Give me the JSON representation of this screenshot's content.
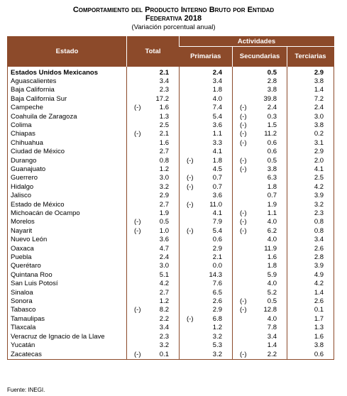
{
  "header": {
    "title_lines": [
      "Comportamiento del Producto Interno Bruto por Entidad",
      "Federativa 2018"
    ],
    "subtitle": "(Variación porcentual anual)"
  },
  "table": {
    "columns": {
      "estado": "Estado",
      "total": "Total",
      "actividades": "Actividades",
      "primarias": "Primarias",
      "secundarias": "Secundarias",
      "terciarias": "Terciarias"
    },
    "rows": [
      {
        "estado": "Estados Unidos Mexicanos",
        "cells": [
          "2.1",
          "2.4",
          "0.5",
          "2.9"
        ]
      },
      {
        "estado": "Aguascalientes",
        "cells": [
          "3.4",
          "3.4",
          "2.8",
          "3.8"
        ]
      },
      {
        "estado": "Baja California",
        "cells": [
          "2.3",
          "1.8",
          "3.8",
          "1.4"
        ]
      },
      {
        "estado": "Baja California Sur",
        "cells": [
          "17.2",
          "4.0",
          "39.8",
          "7.2"
        ]
      },
      {
        "estado": "Campeche",
        "cells": [
          {
            "sign": "(-)",
            "value": "1.6"
          },
          "7.4",
          {
            "sign": "(-)",
            "value": "2.4"
          },
          "2.4"
        ]
      },
      {
        "estado": "Coahuila de Zaragoza",
        "cells": [
          "1.3",
          "5.4",
          {
            "sign": "(-)",
            "value": "0.3"
          },
          "3.0"
        ]
      },
      {
        "estado": "Colima",
        "cells": [
          "2.5",
          "3.6",
          {
            "sign": "(-)",
            "value": "1.5"
          },
          "3.8"
        ]
      },
      {
        "estado": "Chiapas",
        "cells": [
          {
            "sign": "(-)",
            "value": "2.1"
          },
          "1.1",
          {
            "sign": "(-)",
            "value": "11.2"
          },
          "0.2"
        ]
      },
      {
        "estado": "Chihuahua",
        "cells": [
          "1.6",
          "3.3",
          {
            "sign": "(-)",
            "value": "0.6"
          },
          "3.1"
        ]
      },
      {
        "estado": "Ciudad de México",
        "cells": [
          "2.7",
          "4.1",
          "0.6",
          "2.9"
        ]
      },
      {
        "estado": "Durango",
        "cells": [
          "0.8",
          {
            "sign": "(-)",
            "value": "1.8"
          },
          {
            "sign": "(-)",
            "value": "0.5"
          },
          "2.0"
        ]
      },
      {
        "estado": "Guanajuato",
        "cells": [
          "1.2",
          "4.5",
          {
            "sign": "(-)",
            "value": "3.8"
          },
          "4.1"
        ]
      },
      {
        "estado": "Guerrero",
        "cells": [
          "3.0",
          {
            "sign": "(-)",
            "value": "0.7"
          },
          "6.3",
          "2.5"
        ]
      },
      {
        "estado": "Hidalgo",
        "cells": [
          "3.2",
          {
            "sign": "(-)",
            "value": "0.7"
          },
          "1.8",
          "4.2"
        ]
      },
      {
        "estado": "Jalisco",
        "cells": [
          "2.9",
          "3.6",
          "0.7",
          "3.9"
        ]
      },
      {
        "estado": "Estado de México",
        "cells": [
          "2.7",
          {
            "sign": "(-)",
            "value": "11.0"
          },
          "1.9",
          "3.2"
        ]
      },
      {
        "estado": "Michoacán de Ocampo",
        "cells": [
          "1.9",
          "4.1",
          {
            "sign": "(-)",
            "value": "1.1"
          },
          "2.3"
        ]
      },
      {
        "estado": "Morelos",
        "cells": [
          {
            "sign": "(-)",
            "value": "0.5"
          },
          "7.9",
          {
            "sign": "(-)",
            "value": "4.0"
          },
          "0.8"
        ]
      },
      {
        "estado": "Nayarit",
        "cells": [
          {
            "sign": "(-)",
            "value": "1.0"
          },
          {
            "sign": "(-)",
            "value": "5.4"
          },
          {
            "sign": "(-)",
            "value": "6.2"
          },
          "0.8"
        ]
      },
      {
        "estado": "Nuevo León",
        "cells": [
          "3.6",
          "0.6",
          "4.0",
          "3.4"
        ]
      },
      {
        "estado": "Oaxaca",
        "cells": [
          "4.7",
          "2.9",
          "11.9",
          "2.6"
        ]
      },
      {
        "estado": "Puebla",
        "cells": [
          "2.4",
          "2.1",
          "1.6",
          "2.8"
        ]
      },
      {
        "estado": "Querétaro",
        "cells": [
          "3.0",
          "0.0",
          "1.8",
          "3.9"
        ]
      },
      {
        "estado": "Quintana Roo",
        "cells": [
          "5.1",
          "14.3",
          "5.9",
          "4.9"
        ]
      },
      {
        "estado": "San Luis Potosí",
        "cells": [
          "4.2",
          "7.6",
          "4.0",
          "4.2"
        ]
      },
      {
        "estado": "Sinaloa",
        "cells": [
          "2.7",
          "6.5",
          "5.2",
          "1.4"
        ]
      },
      {
        "estado": "Sonora",
        "cells": [
          "1.2",
          "2.6",
          {
            "sign": "(-)",
            "value": "0.5"
          },
          "2.6"
        ]
      },
      {
        "estado": "Tabasco",
        "cells": [
          {
            "sign": "(-)",
            "value": "8.2"
          },
          "2.9",
          {
            "sign": "(-)",
            "value": "12.8"
          },
          "0.1"
        ]
      },
      {
        "estado": "Tamaulipas",
        "cells": [
          "2.2",
          {
            "sign": "(-)",
            "value": "6.8"
          },
          "4.0",
          "1.7"
        ]
      },
      {
        "estado": "Tlaxcala",
        "cells": [
          "3.4",
          "1.2",
          "7.8",
          "1.3"
        ]
      },
      {
        "estado": "Veracruz de Ignacio de la Llave",
        "cells": [
          "2.3",
          "3.2",
          "3.4",
          "1.6"
        ]
      },
      {
        "estado": "Yucatán",
        "cells": [
          "3.2",
          "5.3",
          "1.4",
          "3.8"
        ]
      },
      {
        "estado": "Zacatecas",
        "cells": [
          {
            "sign": "(-)",
            "value": "0.1"
          },
          "3.2",
          {
            "sign": "(-)",
            "value": "2.2"
          },
          "0.6"
        ]
      }
    ]
  },
  "footer": {
    "source": "Fuente: INEGI."
  }
}
